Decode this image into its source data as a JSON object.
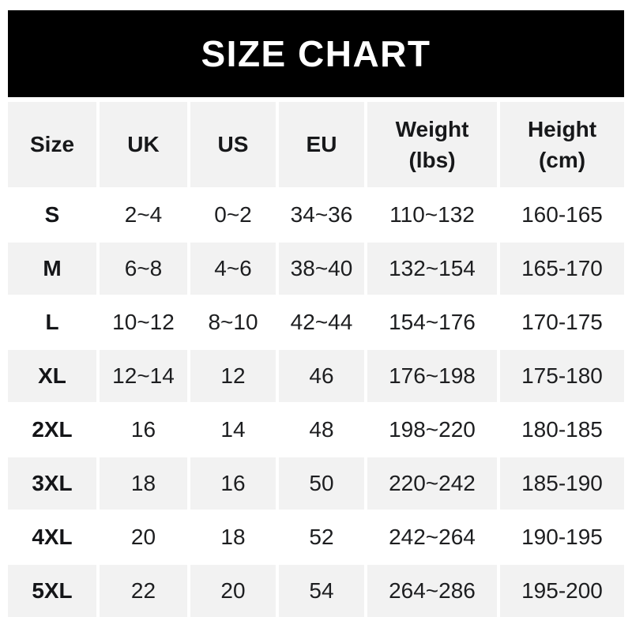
{
  "banner": {
    "title": "SIZE CHART"
  },
  "colors": {
    "banner_bg": "#000000",
    "banner_text": "#ffffff",
    "shaded_cell_bg": "#f2f2f2",
    "page_bg": "#ffffff",
    "text": "#1d1e20"
  },
  "table": {
    "columns": [
      {
        "label": "Size"
      },
      {
        "label": "UK"
      },
      {
        "label": "US"
      },
      {
        "label": "EU"
      },
      {
        "label": "Weight",
        "sub": "(lbs)"
      },
      {
        "label": "Height",
        "sub": "(cm)"
      }
    ],
    "rows": [
      {
        "cells": [
          "S",
          "2~4",
          "0~2",
          "34~36",
          "110~132",
          "160-165"
        ]
      },
      {
        "cells": [
          "M",
          "6~8",
          "4~6",
          "38~40",
          "132~154",
          "165-170"
        ]
      },
      {
        "cells": [
          "L",
          "10~12",
          "8~10",
          "42~44",
          "154~176",
          "170-175"
        ]
      },
      {
        "cells": [
          "XL",
          "12~14",
          "12",
          "46",
          "176~198",
          "175-180"
        ]
      },
      {
        "cells": [
          "2XL",
          "16",
          "14",
          "48",
          "198~220",
          "180-185"
        ]
      },
      {
        "cells": [
          "3XL",
          "18",
          "16",
          "50",
          "220~242",
          "185-190"
        ]
      },
      {
        "cells": [
          "4XL",
          "20",
          "18",
          "52",
          "242~264",
          "190-195"
        ]
      },
      {
        "cells": [
          "5XL",
          "22",
          "20",
          "54",
          "264~286",
          "195-200"
        ]
      }
    ]
  },
  "chart_data": {
    "type": "table",
    "title": "SIZE CHART",
    "columns": [
      "Size",
      "UK",
      "US",
      "EU",
      "Weight (lbs)",
      "Height (cm)"
    ],
    "rows": [
      [
        "S",
        "2~4",
        "0~2",
        "34~36",
        "110~132",
        "160-165"
      ],
      [
        "M",
        "6~8",
        "4~6",
        "38~40",
        "132~154",
        "165-170"
      ],
      [
        "L",
        "10~12",
        "8~10",
        "42~44",
        "154~176",
        "170-175"
      ],
      [
        "XL",
        "12~14",
        "12",
        "46",
        "176~198",
        "175-180"
      ],
      [
        "2XL",
        "16",
        "14",
        "48",
        "198~220",
        "180-185"
      ],
      [
        "3XL",
        "18",
        "16",
        "50",
        "220~242",
        "185-190"
      ],
      [
        "4XL",
        "20",
        "18",
        "52",
        "242~264",
        "190-195"
      ],
      [
        "5XL",
        "22",
        "20",
        "54",
        "264~286",
        "195-200"
      ]
    ]
  }
}
